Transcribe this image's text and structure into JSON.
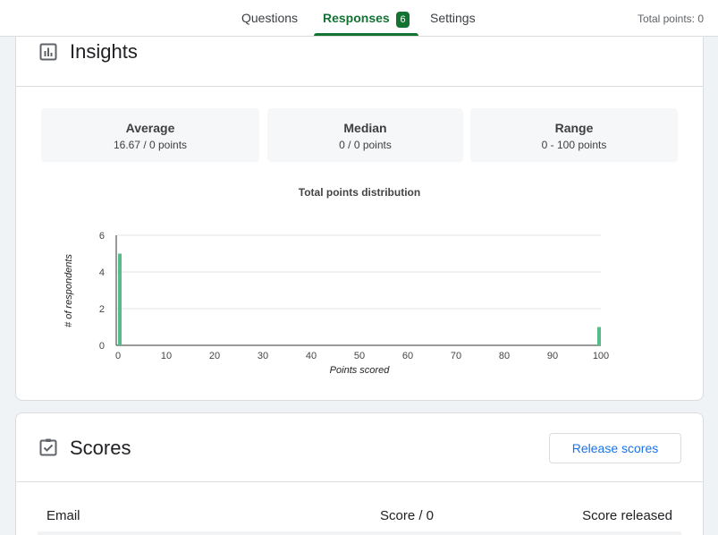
{
  "tabs": [
    {
      "label": "Questions"
    },
    {
      "label": "Responses",
      "count": "6"
    },
    {
      "label": "Settings"
    }
  ],
  "total_points": "Total points: 0",
  "insights": {
    "title": "Insights",
    "stats": [
      {
        "label": "Average",
        "value": "16.67 / 0 points"
      },
      {
        "label": "Median",
        "value": "0 / 0 points"
      },
      {
        "label": "Range",
        "value": "0 - 100 points"
      }
    ]
  },
  "chart_data": {
    "type": "bar",
    "title": "Total points distribution",
    "xlabel": "Points scored",
    "ylabel": "# of respondents",
    "x": [
      0,
      100
    ],
    "values": [
      5,
      1
    ],
    "xlim": [
      0,
      100
    ],
    "ylim": [
      0,
      6
    ],
    "xticks": [
      "0",
      "10",
      "20",
      "30",
      "40",
      "50",
      "60",
      "70",
      "80",
      "90",
      "100"
    ],
    "yticks": [
      "0",
      "2",
      "4",
      "6"
    ],
    "grid": true,
    "color": "#57bb8a"
  },
  "scores": {
    "title": "Scores",
    "release_label": "Release scores",
    "columns": [
      "Email",
      "Score / 0",
      "Score released"
    ]
  }
}
